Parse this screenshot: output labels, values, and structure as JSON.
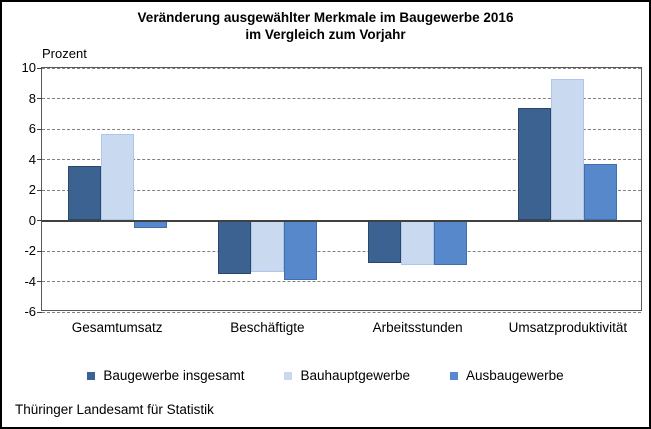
{
  "header": {
    "title_line1": "Veränderung ausgewählter Merkmale im Baugewerbe 2016",
    "title_line2": "im Vergleich zum Vorjahr"
  },
  "chart_data": {
    "type": "bar",
    "title": "Veränderung ausgewählter Merkmale im Baugewerbe 2016 im Vergleich zum Vorjahr",
    "ylabel": "Prozent",
    "categories": [
      "Gesamtumsatz",
      "Beschäftigte",
      "Arbeitsstunden",
      "Umsatzproduktivität"
    ],
    "series": [
      {
        "name": "Baugewerbe insgesamt",
        "color": "#3B6291",
        "border_color": "#29486B",
        "values": [
          3.6,
          -3.5,
          -2.8,
          7.4
        ]
      },
      {
        "name": "Bauhauptgewerbe",
        "color": "#C9DAF0",
        "border_color": "#AEC6E8",
        "values": [
          5.7,
          -3.4,
          -2.9,
          9.3
        ]
      },
      {
        "name": "Ausbaugewerbe",
        "color": "#5788CC",
        "border_color": "#406FAD",
        "values": [
          -0.5,
          -3.9,
          -2.9,
          3.7
        ]
      }
    ],
    "ylim": [
      -6,
      10
    ],
    "ytick_step": 2,
    "grid": true,
    "legend_position": "bottom",
    "colors": {
      "gridline": "#808080",
      "axis_border": "#595959",
      "zero_line": "#404040"
    }
  },
  "footer": {
    "source": "Thüringer Landesamt für Statistik"
  }
}
